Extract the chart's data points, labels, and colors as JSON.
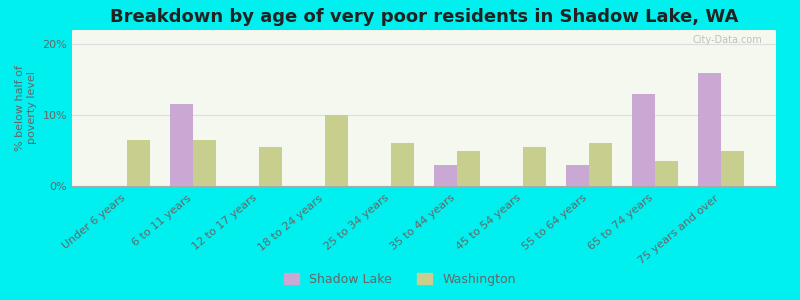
{
  "title": "Breakdown by age of very poor residents in Shadow Lake, WA",
  "ylabel": "% below half of\npoverty level",
  "categories": [
    "Under 6 years",
    "6 to 11 years",
    "12 to 17 years",
    "18 to 24 years",
    "25 to 34 years",
    "35 to 44 years",
    "45 to 54 years",
    "55 to 64 years",
    "65 to 74 years",
    "75 years and over"
  ],
  "shadow_lake": [
    0,
    11.5,
    0,
    0,
    0,
    3.0,
    0,
    3.0,
    13.0,
    16.0
  ],
  "washington": [
    6.5,
    6.5,
    5.5,
    10.0,
    6.0,
    5.0,
    5.5,
    6.0,
    3.5,
    5.0
  ],
  "shadow_lake_color": "#c9a8d4",
  "washington_color": "#c8cf8e",
  "background_outer": "#00efef",
  "background_plot": "#f5f8ee",
  "ylim": [
    0,
    22
  ],
  "yticks": [
    0,
    10,
    20
  ],
  "ytick_labels": [
    "0%",
    "10%",
    "20%"
  ],
  "bar_width": 0.35,
  "legend_shadow_lake": "Shadow Lake",
  "legend_washington": "Washington",
  "title_fontsize": 13,
  "axis_label_fontsize": 8,
  "tick_fontsize": 8,
  "legend_fontsize": 9
}
